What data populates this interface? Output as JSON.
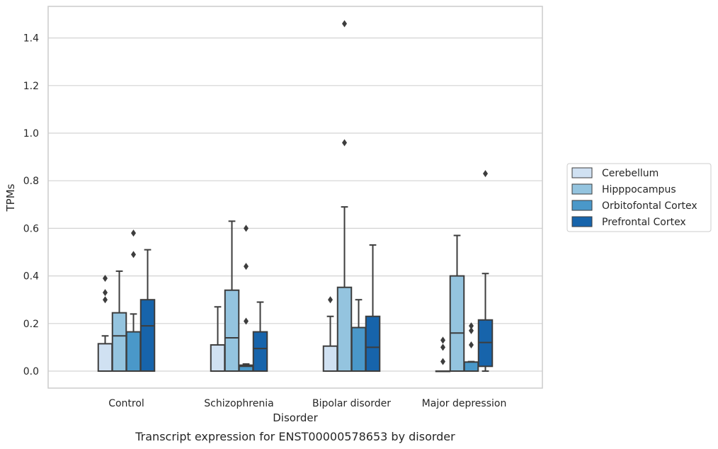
{
  "caption": "Transcript expression for ENST00000578653 by disorder",
  "chart_data": {
    "type": "boxplot",
    "title": "",
    "xlabel": "Disorder",
    "ylabel": "TPMs",
    "ylim": [
      -0.07,
      1.54
    ],
    "yticks": [
      "0.0",
      "0.2",
      "0.4",
      "0.6",
      "0.8",
      "1.0",
      "1.2",
      "1.4"
    ],
    "ytick_values": [
      0.0,
      0.2,
      0.4,
      0.6,
      0.8,
      1.0,
      1.2,
      1.4
    ],
    "grid": "horizontal",
    "legend_position": "right",
    "categories": [
      "Control",
      "Schizophrenia",
      "Bipolar disorder",
      "Major depression"
    ],
    "series": [
      {
        "name": "Cerebellum",
        "color": "#d0e1f2",
        "boxes": [
          {
            "whislo": 0.0,
            "q1": 0.0,
            "med": 0.0,
            "q3": 0.115,
            "whishi": 0.148,
            "fliers": [
              0.3,
              0.33,
              0.39
            ]
          },
          {
            "whislo": 0.0,
            "q1": 0.0,
            "med": 0.0,
            "q3": 0.11,
            "whishi": 0.27,
            "fliers": []
          },
          {
            "whislo": 0.0,
            "q1": 0.0,
            "med": 0.0,
            "q3": 0.105,
            "whishi": 0.23,
            "fliers": [
              0.3
            ]
          },
          {
            "whislo": 0.0,
            "q1": 0.0,
            "med": 0.0,
            "q3": 0.0,
            "whishi": 0.0,
            "fliers": [
              0.04,
              0.1,
              0.13
            ]
          }
        ]
      },
      {
        "name": "Hipppocampus",
        "color": "#94c4df",
        "boxes": [
          {
            "whislo": 0.0,
            "q1": 0.0,
            "med": 0.148,
            "q3": 0.245,
            "whishi": 0.42,
            "fliers": []
          },
          {
            "whislo": 0.0,
            "q1": 0.0,
            "med": 0.14,
            "q3": 0.34,
            "whishi": 0.63,
            "fliers": []
          },
          {
            "whislo": 0.0,
            "q1": 0.0,
            "med": 0.0,
            "q3": 0.352,
            "whishi": 0.69,
            "fliers": [
              0.96,
              1.46
            ]
          },
          {
            "whislo": 0.0,
            "q1": 0.0,
            "med": 0.16,
            "q3": 0.4,
            "whishi": 0.57,
            "fliers": []
          }
        ]
      },
      {
        "name": "Orbitofontal Cortex",
        "color": "#4a98c9",
        "boxes": [
          {
            "whislo": 0.0,
            "q1": 0.0,
            "med": 0.0,
            "q3": 0.165,
            "whishi": 0.24,
            "fliers": [
              0.49,
              0.58
            ]
          },
          {
            "whislo": 0.0,
            "q1": 0.0,
            "med": 0.02,
            "q3": 0.025,
            "whishi": 0.03,
            "fliers": [
              0.21,
              0.44,
              0.6
            ]
          },
          {
            "whislo": 0.0,
            "q1": 0.0,
            "med": 0.0,
            "q3": 0.183,
            "whishi": 0.3,
            "fliers": []
          },
          {
            "whislo": 0.0,
            "q1": 0.0,
            "med": 0.0,
            "q3": 0.038,
            "whishi": 0.04,
            "fliers": [
              0.11,
              0.17,
              0.19
            ]
          }
        ]
      },
      {
        "name": "Prefrontal Cortex",
        "color": "#1764ab",
        "boxes": [
          {
            "whislo": 0.0,
            "q1": 0.0,
            "med": 0.19,
            "q3": 0.3,
            "whishi": 0.51,
            "fliers": []
          },
          {
            "whislo": 0.0,
            "q1": 0.0,
            "med": 0.095,
            "q3": 0.165,
            "whishi": 0.29,
            "fliers": []
          },
          {
            "whislo": 0.0,
            "q1": 0.0,
            "med": 0.1,
            "q3": 0.23,
            "whishi": 0.53,
            "fliers": []
          },
          {
            "whislo": 0.0,
            "q1": 0.02,
            "med": 0.12,
            "q3": 0.215,
            "whishi": 0.41,
            "fliers": [
              0.83
            ]
          }
        ]
      }
    ]
  }
}
